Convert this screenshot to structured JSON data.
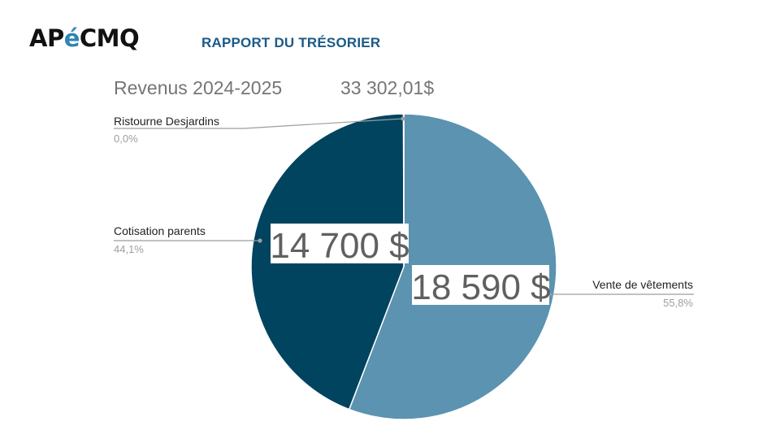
{
  "header": {
    "logo": {
      "part1": "AP",
      "part2": "é",
      "part3": "CMQ"
    },
    "report_title": "RAPPORT DU TRÉSORIER"
  },
  "chart_data": {
    "type": "pie",
    "title": "Revenus 2024-2025",
    "total_label": "33 302,01$",
    "colors": {
      "Vente de vêtements": "#5b93b1",
      "Cotisation parents": "#00445f",
      "Ristourne Desjardins": "#9e9e9e"
    },
    "slices": [
      {
        "name": "Vente de vêtements",
        "value": 18590,
        "percent": "55,8%",
        "value_label": "18 590 $"
      },
      {
        "name": "Cotisation parents",
        "value": 14700,
        "percent": "44,1%",
        "value_label": "14 700 $"
      },
      {
        "name": "Ristourne Desjardins",
        "value": 12.01,
        "percent": "0,0%",
        "value_label": ""
      }
    ]
  }
}
